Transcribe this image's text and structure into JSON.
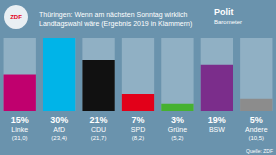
{
  "chart_data": {
    "type": "bar",
    "title": "Thüringen: Wenn am nächsten Sonntag wirklich",
    "subtitle": "Landtagswahl wäre (Ergebnis 2019 in Klammern)",
    "categories": [
      "Linke",
      "AfD",
      "CDU",
      "SPD",
      "Grüne",
      "BSW",
      "Andere"
    ],
    "values": [
      15,
      30,
      21,
      7,
      3,
      19,
      5
    ],
    "value_labels": [
      "15%",
      "30%",
      "21%",
      "7%",
      "3%",
      "19%",
      "5%"
    ],
    "data_labels": true,
    "colors": [
      "#c0006e",
      "#00b4e8",
      "#111111",
      "#e20019",
      "#46b131",
      "#7b2d8b",
      "#8c8c8c"
    ],
    "ylim": [
      0,
      30
    ],
    "grid": false,
    "tick_labels": "x",
    "annotations": [
      {
        "text": "(31,0)",
        "x": "Linke"
      },
      {
        "text": "(23,4)",
        "x": "AfD"
      },
      {
        "text": "(21,7)",
        "x": "CDU"
      },
      {
        "text": "(8,2)",
        "x": "SPD"
      },
      {
        "text": "(5,2)",
        "x": "Grüne"
      },
      {
        "text": "(10,5)",
        "x": "Andere"
      },
      {
        "text": "Quelle: ZDF"
      },
      {
        "text": "ZDF"
      },
      {
        "text": "Polit"
      },
      {
        "text": "Barometer"
      }
    ]
  }
}
